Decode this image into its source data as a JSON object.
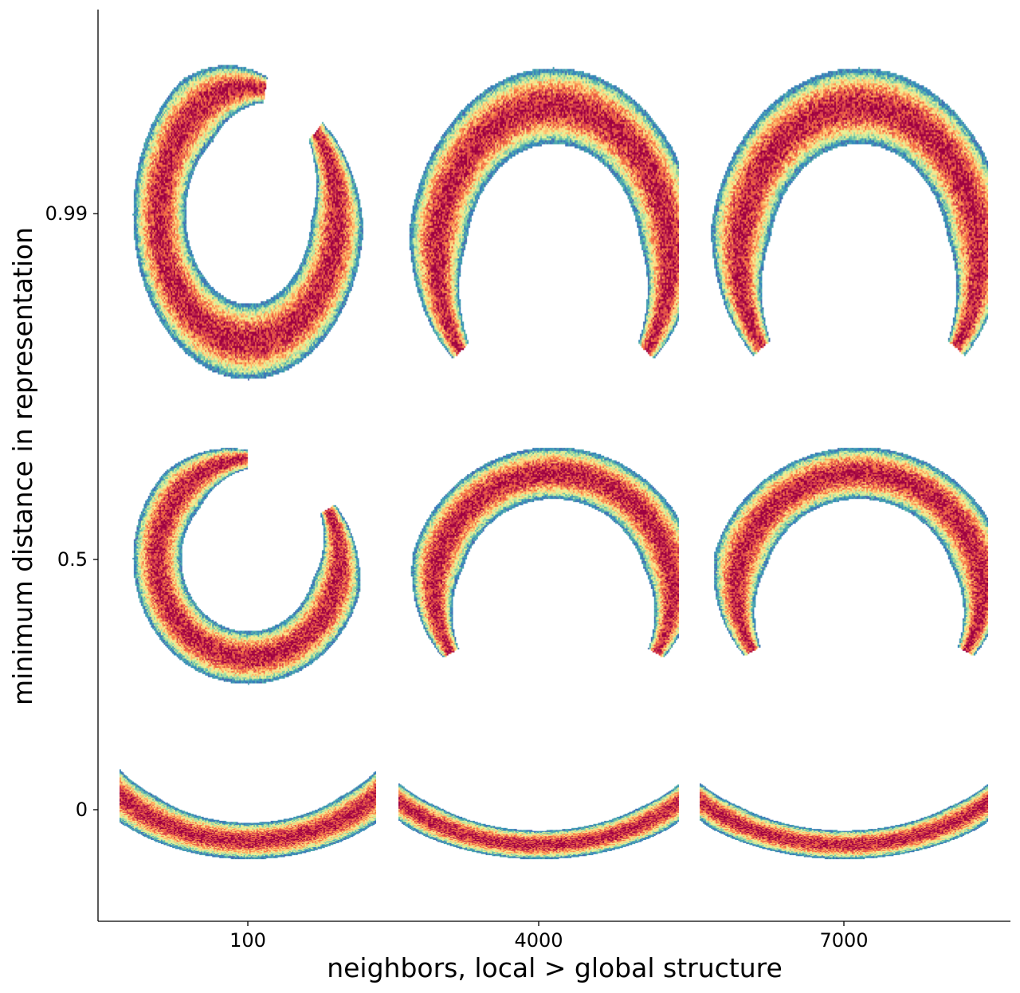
{
  "chart_data": {
    "type": "heatmap",
    "title": "",
    "xlabel": "neighbors, local > global structure",
    "ylabel": "minimum distance in representation",
    "x_ticks": [
      "100",
      "4000",
      "7000"
    ],
    "y_ticks": [
      "0.99",
      "0.5",
      "0"
    ],
    "grid": false,
    "colormap": [
      "#5e4fa2",
      "#3288bd",
      "#66c2a5",
      "#abdda4",
      "#e6f598",
      "#fee08b",
      "#fdae61",
      "#f46d43",
      "#d53e4f",
      "#9e0142"
    ],
    "panels": [
      {
        "neighbors": "100",
        "min_dist": "0.99",
        "shape": "ring",
        "opening_deg": 38,
        "band_thickness": 0.46
      },
      {
        "neighbors": "4000",
        "min_dist": "0.99",
        "shape": "arc",
        "opening_deg": 105,
        "band_thickness": 0.4
      },
      {
        "neighbors": "7000",
        "min_dist": "0.99",
        "shape": "arc",
        "opening_deg": 108,
        "band_thickness": 0.4
      },
      {
        "neighbors": "100",
        "min_dist": "0.5",
        "shape": "ring",
        "opening_deg": 60,
        "band_thickness": 0.42
      },
      {
        "neighbors": "4000",
        "min_dist": "0.5",
        "shape": "arc",
        "opening_deg": 118,
        "band_thickness": 0.36
      },
      {
        "neighbors": "7000",
        "min_dist": "0.5",
        "shape": "arc",
        "opening_deg": 120,
        "band_thickness": 0.36
      },
      {
        "neighbors": "100",
        "min_dist": "0",
        "shape": "crescent",
        "opening_deg": 180,
        "band_thickness": 0.28
      },
      {
        "neighbors": "4000",
        "min_dist": "0",
        "shape": "crescent",
        "opening_deg": 190,
        "band_thickness": 0.22
      },
      {
        "neighbors": "7000",
        "min_dist": "0",
        "shape": "crescent",
        "opening_deg": 190,
        "band_thickness": 0.22
      }
    ]
  }
}
